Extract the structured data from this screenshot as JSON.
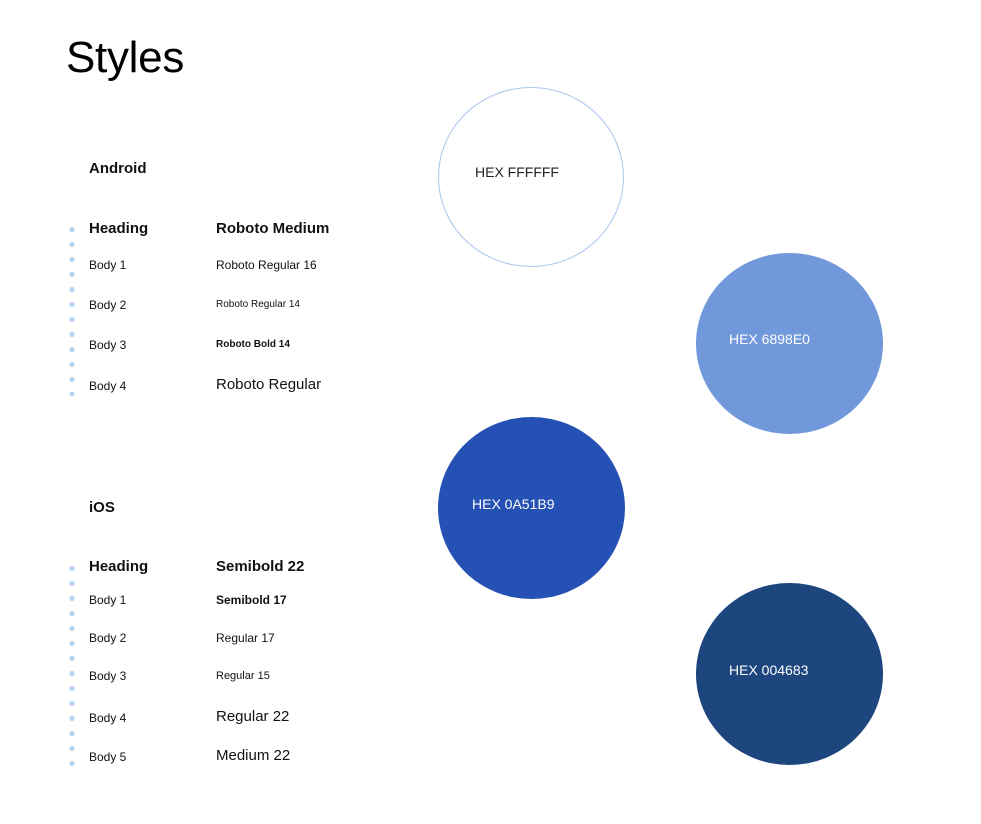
{
  "page": {
    "title": "Styles"
  },
  "android": {
    "label": "Android",
    "rows": [
      {
        "name": "Heading",
        "value": "Roboto Medium"
      },
      {
        "name": "Body 1",
        "value": "Roboto Regular 16"
      },
      {
        "name": "Body 2",
        "value": "Roboto Regular 14"
      },
      {
        "name": "Body 3",
        "value": "Roboto Bold 14"
      },
      {
        "name": "Body 4",
        "value": "Roboto Regular"
      }
    ]
  },
  "ios": {
    "label": "iOS",
    "rows": [
      {
        "name": "Heading",
        "value": "Semibold 22"
      },
      {
        "name": "Body 1",
        "value": "Semibold 17"
      },
      {
        "name": "Body 2",
        "value": "Regular 17"
      },
      {
        "name": "Body 3",
        "value": "Regular 15"
      },
      {
        "name": "Body 4",
        "value": "Regular 22"
      },
      {
        "name": "Body 5",
        "value": "Medium 22"
      }
    ]
  },
  "colors": [
    {
      "label": "HEX FFFFFF",
      "hex": "#FFFFFF"
    },
    {
      "label": "HEX 6898E0",
      "hex": "#6898E0"
    },
    {
      "label": "HEX 0A51B9",
      "hex": "#0A51B9"
    },
    {
      "label": "HEX 004683",
      "hex": "#004683"
    }
  ]
}
